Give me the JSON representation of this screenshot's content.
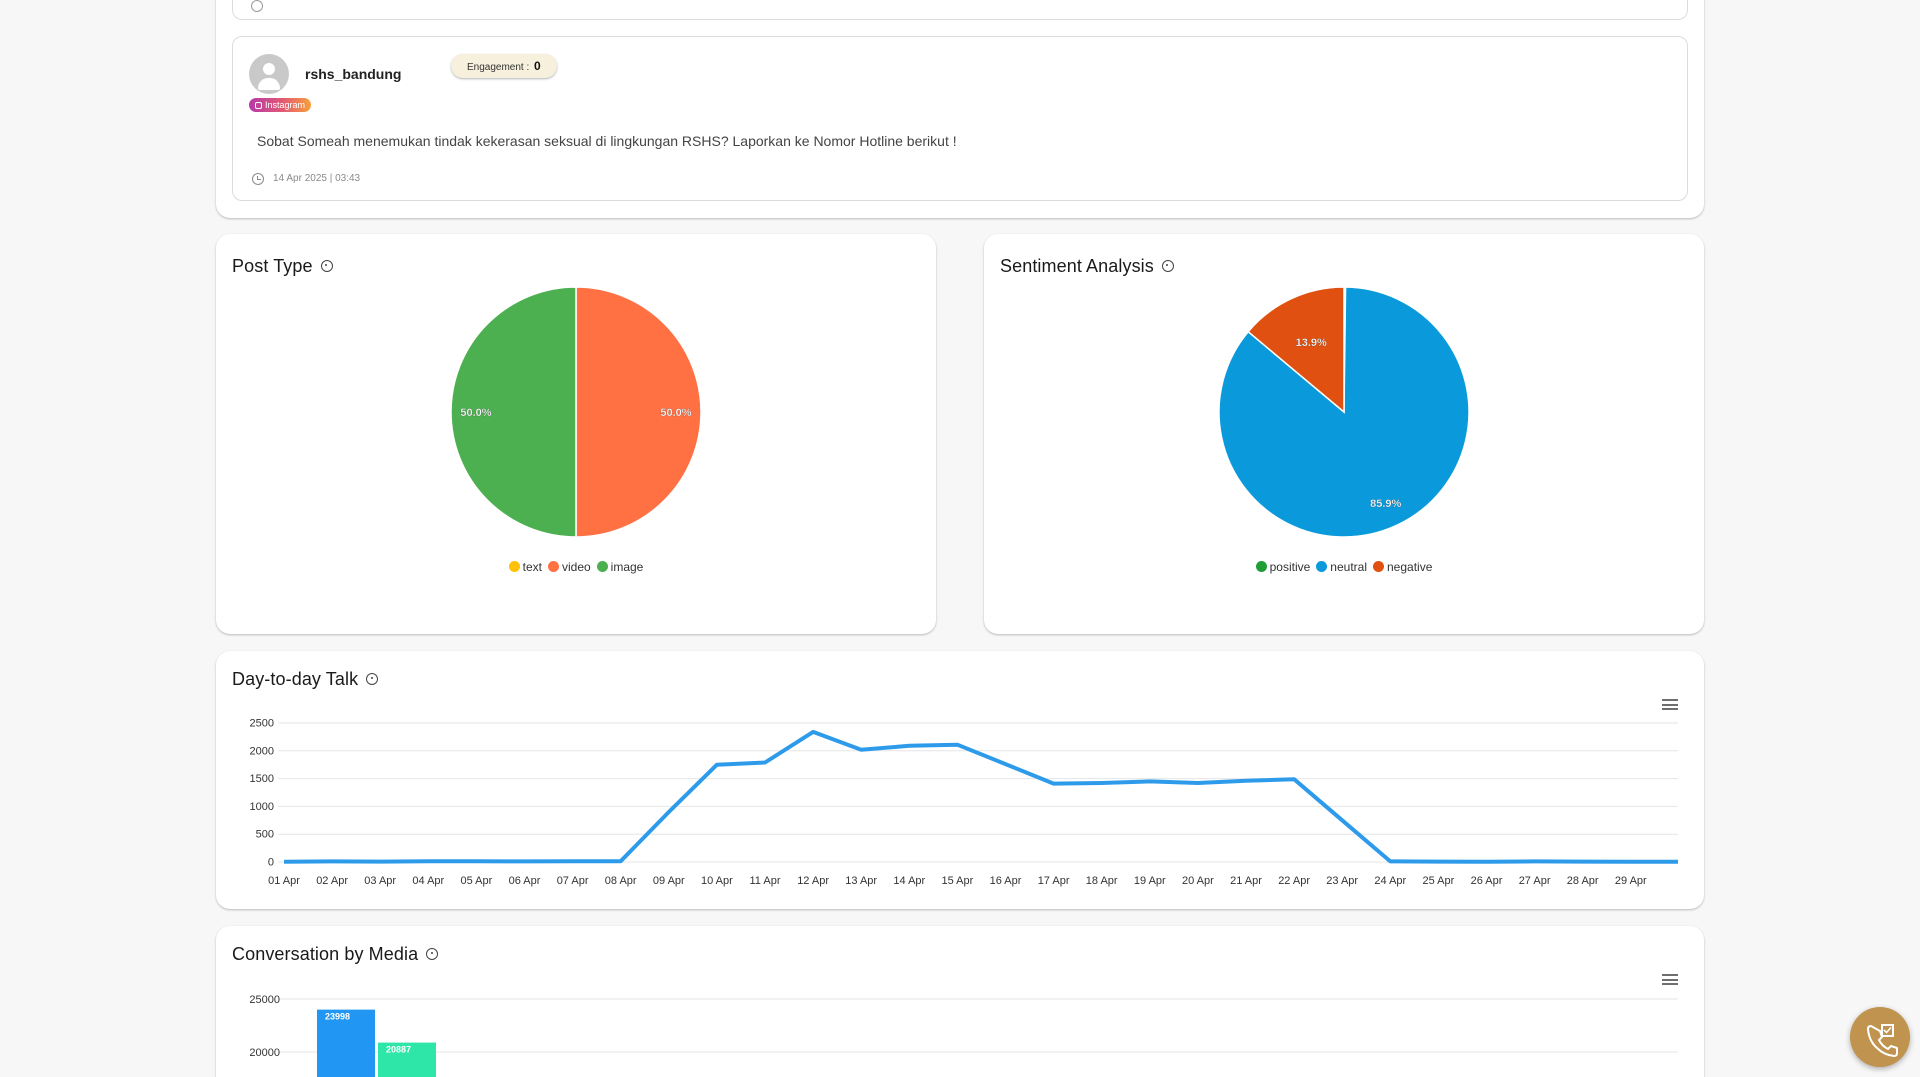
{
  "post": {
    "username": "rshs_bandung",
    "engagement_label": "Engagement :",
    "engagement_value": "0",
    "platform": "Instagram",
    "text": "Sobat Someah menemukan tindak kekerasan seksual di lingkungan RSHS? Laporkan ke Nomor Hotline berikut !",
    "time": "14 Apr 2025 | 03:43"
  },
  "post_type": {
    "title": "Post Type"
  },
  "sentiment": {
    "title": "Sentiment Analysis"
  },
  "talk": {
    "title": "Day-to-day Talk"
  },
  "media": {
    "title": "Conversation by Media"
  },
  "colors": {
    "text": "#FFC107",
    "video": "#FF7043",
    "image": "#4CAF50",
    "positive": "#1E9E35",
    "neutral": "#0A9ADB",
    "negative": "#E05010",
    "line": "#2E9BEA",
    "bar1": "#2196F3",
    "bar2": "#2EE6A7",
    "fab": "#C0934F"
  },
  "icons": [
    "info-icon",
    "clock-icon",
    "instagram-icon",
    "menu-icon",
    "phone-call-icon",
    "avatar-icon"
  ],
  "chart_data": [
    {
      "type": "pie",
      "title": "Post Type",
      "labels": [
        "text",
        "video",
        "image"
      ],
      "values": [
        0,
        50.0,
        50.0
      ],
      "data_labels": [
        "",
        "50.0%",
        "50.0%"
      ],
      "legend": "bottom"
    },
    {
      "type": "pie",
      "title": "Sentiment Analysis",
      "labels": [
        "positive",
        "neutral",
        "negative"
      ],
      "values": [
        0.2,
        85.9,
        13.9
      ],
      "data_labels": [
        "",
        "85.9%",
        "13.9%"
      ],
      "legend": "bottom"
    },
    {
      "type": "line",
      "title": "Day-to-day Talk",
      "categories": [
        "01 Apr",
        "02 Apr",
        "03 Apr",
        "04 Apr",
        "05 Apr",
        "06 Apr",
        "07 Apr",
        "08 Apr",
        "09 Apr",
        "10 Apr",
        "11 Apr",
        "12 Apr",
        "13 Apr",
        "14 Apr",
        "15 Apr",
        "16 Apr",
        "17 Apr",
        "18 Apr",
        "19 Apr",
        "20 Apr",
        "21 Apr",
        "22 Apr",
        "23 Apr",
        "24 Apr",
        "25 Apr",
        "26 Apr",
        "27 Apr",
        "28 Apr",
        "29 Apr"
      ],
      "values": [
        5,
        10,
        8,
        15,
        12,
        10,
        12,
        15,
        900,
        1750,
        1790,
        2340,
        2020,
        2090,
        2110,
        1760,
        1410,
        1420,
        1450,
        1420,
        1460,
        1490,
        750,
        10,
        8,
        6,
        10,
        8,
        5
      ],
      "yticks": [
        0,
        500,
        1000,
        1500,
        2000,
        2500
      ],
      "ylim": [
        0,
        2500
      ],
      "grid": true
    },
    {
      "type": "bar",
      "title": "Conversation by Media",
      "series": [
        {
          "values": [
            23998
          ]
        },
        {
          "values": [
            20887
          ]
        }
      ],
      "data_labels": [
        "23998",
        "20887"
      ],
      "yticks_visible": [
        20000,
        25000
      ],
      "grid": true
    }
  ]
}
